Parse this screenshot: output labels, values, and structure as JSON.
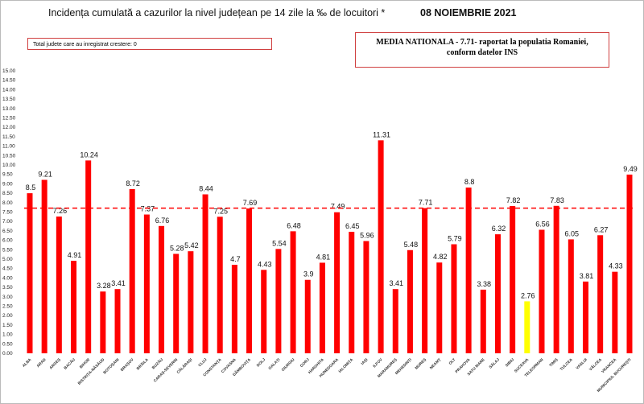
{
  "chart_data": {
    "type": "bar",
    "title": "Incidența cumulată a cazurilor la nivel județean pe 14 zile la ‰ de locuitori *",
    "date": "08 NOIEMBRIE 2021",
    "note_box": "Total judete care au inregistrat crestere: 0",
    "mean_box": [
      "MEDIA NATIONALA - 7.71-  raportat la populatia Romaniei,",
      "conform datelor INS"
    ],
    "mean_line": 7.71,
    "ylim": [
      0,
      15
    ],
    "ytick_step": 0.5,
    "grid": false,
    "colors": {
      "bar": "#ff0000",
      "highlight": "#ffff00",
      "mean_line": "#ff0000"
    },
    "highlight_category": "SUCEAVA",
    "categories": [
      "ALBA",
      "ARAD",
      "ARGEȘ",
      "BACĂU",
      "BIHOR",
      "BISTRIȚA-NĂSĂUD",
      "BOTOȘANI",
      "BRAȘOV",
      "BRĂILA",
      "BUZĂU",
      "CARAȘ-SEVERIN",
      "CĂLĂRAȘI",
      "CLUJ",
      "CONSTANȚA",
      "COVASNA",
      "DÂMBOVIȚA",
      "DOLJ",
      "GALAȚI",
      "GIURGIU",
      "GORJ",
      "HARGHITA",
      "HUNEDOARA",
      "IALOMIȚA",
      "IAȘI",
      "ILFOV",
      "MARAMUREȘ",
      "MEHEDINȚI",
      "MUREȘ",
      "NEAMȚ",
      "OLT",
      "PRAHOVA",
      "SATU MARE",
      "SĂLAJ",
      "SIBIU",
      "SUCEAVA",
      "TELEORMAN",
      "TIMIȘ",
      "TULCEA",
      "VASLUI",
      "VÂLCEA",
      "VRANCEA",
      "MUNICIPIUL BUCUREȘTI"
    ],
    "values": [
      8.5,
      9.21,
      7.26,
      4.91,
      10.24,
      3.28,
      3.41,
      8.72,
      7.37,
      6.76,
      5.28,
      5.42,
      8.44,
      7.25,
      4.7,
      7.69,
      4.43,
      5.54,
      6.48,
      3.9,
      4.81,
      7.49,
      6.45,
      5.96,
      11.31,
      3.41,
      5.48,
      7.71,
      4.82,
      5.79,
      8.8,
      3.38,
      6.32,
      7.82,
      2.76,
      6.56,
      7.83,
      6.05,
      3.81,
      6.27,
      4.33,
      9.49
    ],
    "value_labels": [
      "8.5",
      "9.21",
      "7.26",
      "4.91",
      "10.24",
      "3.28",
      "3.41",
      "8.72",
      "7.37",
      "6.76",
      "5.28",
      "5.42",
      "8.44",
      "7.25",
      "4.7",
      "7.69",
      "4.43",
      "5.54",
      "6.48",
      "3.9",
      "4.81",
      "7.49",
      "6.45",
      "5.96",
      "11.31",
      "3.41",
      "5.48",
      "7.71",
      "4.82",
      "5.79",
      "8.8",
      "3.38",
      "6.32",
      "7.82",
      "2.76",
      "6.56",
      "7.83",
      "6.05",
      "3.81",
      "6.27",
      "4.33",
      "9.49"
    ]
  }
}
